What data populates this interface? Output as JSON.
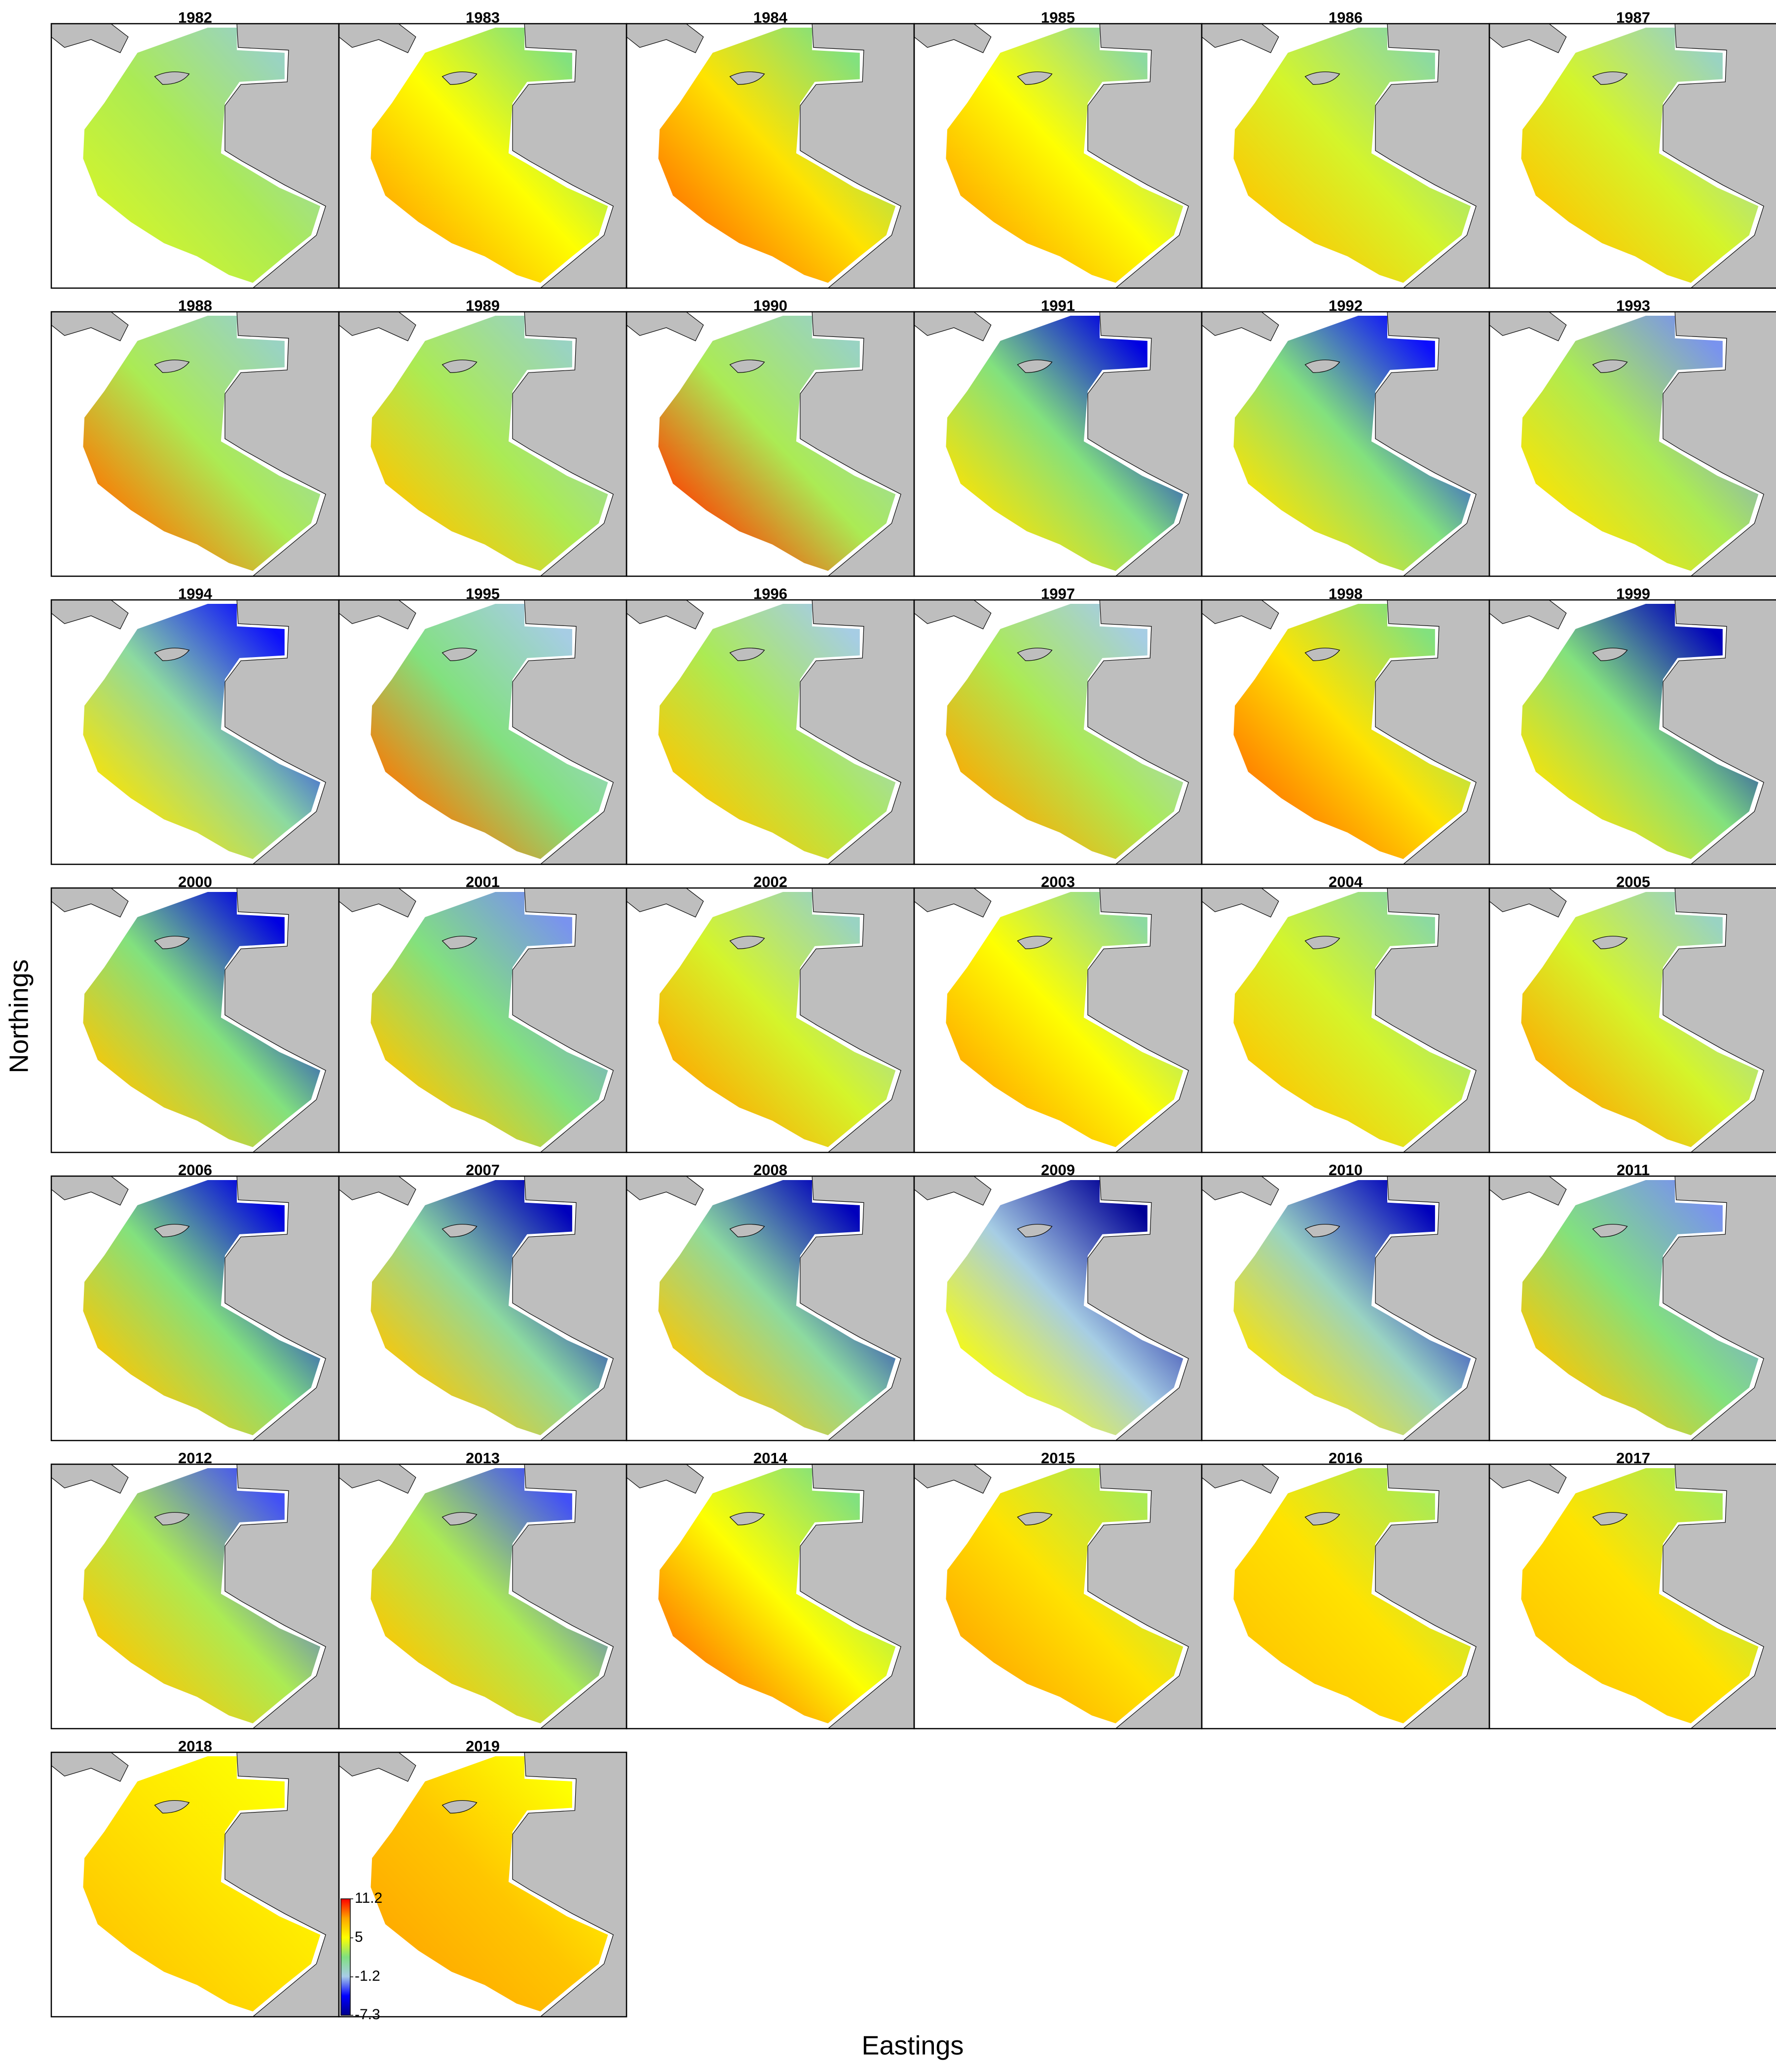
{
  "x_label": "Eastings",
  "y_label": "Northings",
  "colormap": [
    "#00008b",
    "#0000ff",
    "#a8cce8",
    "#80e080",
    "#ffff00",
    "#ffa500",
    "#ff0000"
  ],
  "colorbar_ticks": [
    11.2,
    5,
    -1.2,
    -7.3
  ],
  "panels": [
    {
      "year": "1982",
      "values": [
        4,
        3,
        0
      ]
    },
    {
      "year": "1983",
      "values": [
        8,
        5,
        2
      ]
    },
    {
      "year": "1984",
      "values": [
        9,
        6,
        2
      ]
    },
    {
      "year": "1985",
      "values": [
        8,
        5,
        1
      ]
    },
    {
      "year": "1986",
      "values": [
        7,
        4,
        1
      ]
    },
    {
      "year": "1987",
      "values": [
        7,
        4,
        0
      ]
    },
    {
      "year": "1988",
      "values": [
        9,
        3,
        0
      ]
    },
    {
      "year": "1989",
      "values": [
        7,
        3,
        0
      ]
    },
    {
      "year": "1990",
      "values": [
        10,
        3,
        0
      ]
    },
    {
      "year": "1991",
      "values": [
        6,
        2,
        -5
      ]
    },
    {
      "year": "1992",
      "values": [
        6,
        2,
        -4
      ]
    },
    {
      "year": "1993",
      "values": [
        6,
        3,
        -2
      ]
    },
    {
      "year": "1994",
      "values": [
        6,
        1,
        -4
      ]
    },
    {
      "year": "1995",
      "values": [
        9,
        2,
        -1
      ]
    },
    {
      "year": "1996",
      "values": [
        7,
        3,
        -1
      ]
    },
    {
      "year": "1997",
      "values": [
        8,
        3,
        -1
      ]
    },
    {
      "year": "1998",
      "values": [
        9,
        6,
        2
      ]
    },
    {
      "year": "1999",
      "values": [
        6,
        2,
        -6
      ]
    },
    {
      "year": "2000",
      "values": [
        7,
        2,
        -5
      ]
    },
    {
      "year": "2001",
      "values": [
        7,
        2,
        -2
      ]
    },
    {
      "year": "2002",
      "values": [
        8,
        4,
        0
      ]
    },
    {
      "year": "2003",
      "values": [
        8,
        5,
        1
      ]
    },
    {
      "year": "2004",
      "values": [
        7,
        4,
        1
      ]
    },
    {
      "year": "2005",
      "values": [
        8,
        4,
        0
      ]
    },
    {
      "year": "2006",
      "values": [
        7,
        2,
        -5
      ]
    },
    {
      "year": "2007",
      "values": [
        7,
        1,
        -6
      ]
    },
    {
      "year": "2008",
      "values": [
        7,
        1,
        -6
      ]
    },
    {
      "year": "2009",
      "values": [
        5,
        -1,
        -7
      ]
    },
    {
      "year": "2010",
      "values": [
        6,
        0,
        -6
      ]
    },
    {
      "year": "2011",
      "values": [
        7,
        2,
        -2
      ]
    },
    {
      "year": "2012",
      "values": [
        7,
        3,
        -3
      ]
    },
    {
      "year": "2013",
      "values": [
        7,
        3,
        -3
      ]
    },
    {
      "year": "2014",
      "values": [
        9,
        5,
        2
      ]
    },
    {
      "year": "2015",
      "values": [
        8,
        6,
        3
      ]
    },
    {
      "year": "2016",
      "values": [
        7,
        6,
        3
      ]
    },
    {
      "year": "2017",
      "values": [
        7,
        6,
        3
      ]
    },
    {
      "year": "2018",
      "values": [
        7,
        6,
        5
      ]
    },
    {
      "year": "2019",
      "values": [
        8,
        7,
        5
      ]
    }
  ]
}
